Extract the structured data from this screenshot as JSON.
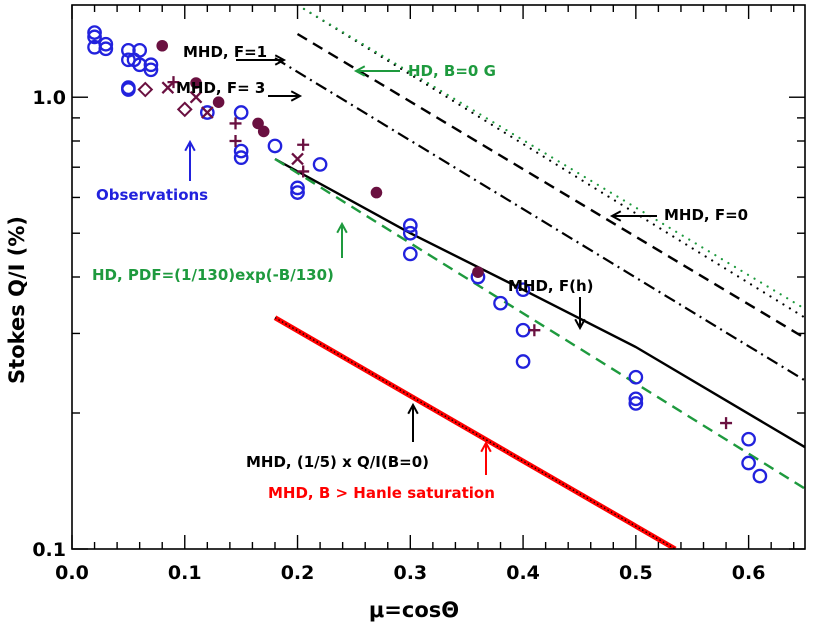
{
  "chart_data": {
    "type": "scatter",
    "xlabel": "μ=cosΘ",
    "ylabel": "Stokes Q/I (%)",
    "xlim": [
      0.0,
      0.65
    ],
    "ylim": [
      0.1,
      1.6
    ],
    "yscale": "log",
    "x_ticks": [
      {
        "value": 0.0,
        "label": "0.0"
      },
      {
        "value": 0.1,
        "label": "0.1"
      },
      {
        "value": 0.2,
        "label": "0.2"
      },
      {
        "value": 0.3,
        "label": "0.3"
      },
      {
        "value": 0.4,
        "label": "0.4"
      },
      {
        "value": 0.5,
        "label": "0.5"
      },
      {
        "value": 0.6,
        "label": "0.6"
      }
    ],
    "y_ticks": [
      {
        "value": 0.1,
        "label": "0.1"
      },
      {
        "value": 1.0,
        "label": "1.0"
      }
    ],
    "colors": {
      "black": "#000000",
      "green": "#1e9a3e",
      "red": "#ff0000",
      "blue": "#2222dd",
      "maroon": "#6a1040"
    },
    "series": [
      {
        "name": "MHD, F=1",
        "style": "dotted",
        "color": "#000000",
        "x": [
          0.2,
          0.65
        ],
        "y": [
          1.6,
          0.325
        ]
      },
      {
        "name": "HD, B=0 G",
        "style": "dotted",
        "color": "#1e9a3e",
        "x": [
          0.2,
          0.65
        ],
        "y": [
          1.6,
          0.34
        ]
      },
      {
        "name": "MHD, F=3",
        "style": "dashed",
        "color": "#000000",
        "x": [
          0.2,
          0.65
        ],
        "y": [
          1.38,
          0.293
        ]
      },
      {
        "name": "MHD, F=0",
        "style": "dashdot",
        "color": "#000000",
        "x": [
          0.18,
          0.65
        ],
        "y": [
          1.22,
          0.236
        ]
      },
      {
        "name": "MHD, F(h)",
        "style": "solid",
        "color": "#000000",
        "x": [
          0.18,
          0.3,
          0.4,
          0.5,
          0.65
        ],
        "y": [
          0.73,
          0.5,
          0.375,
          0.28,
          0.168
        ]
      },
      {
        "name": "HD, PDF=(1/130)exp(-B/130)",
        "style": "dashed",
        "color": "#1e9a3e",
        "x": [
          0.18,
          0.65
        ],
        "y": [
          0.73,
          0.136
        ]
      },
      {
        "name": "MHD, B > Hanle saturation",
        "style": "solid-thick",
        "color": "#ff0000",
        "x": [
          0.18,
          0.535
        ],
        "y": [
          0.325,
          0.1
        ]
      },
      {
        "name": "MHD, (1/5) x Q/I(B=0)",
        "style": "dotted",
        "color": "#000000",
        "x": [
          0.18,
          0.535
        ],
        "y": [
          0.325,
          0.1
        ]
      }
    ],
    "observations": [
      {
        "marker": "open-circle",
        "color": "#2222dd",
        "points": [
          [
            0.02,
            1.39
          ],
          [
            0.02,
            1.36
          ],
          [
            0.02,
            1.29
          ],
          [
            0.03,
            1.31
          ],
          [
            0.03,
            1.28
          ],
          [
            0.05,
            1.27
          ],
          [
            0.05,
            1.21
          ],
          [
            0.05,
            1.05
          ],
          [
            0.05,
            1.04
          ],
          [
            0.055,
            1.21
          ],
          [
            0.06,
            1.27
          ],
          [
            0.06,
            1.18
          ],
          [
            0.07,
            1.18
          ],
          [
            0.07,
            1.15
          ],
          [
            0.12,
            0.925
          ],
          [
            0.15,
            0.925
          ],
          [
            0.15,
            0.76
          ],
          [
            0.15,
            0.735
          ],
          [
            0.18,
            0.78
          ],
          [
            0.2,
            0.63
          ],
          [
            0.2,
            0.615
          ],
          [
            0.22,
            0.71
          ],
          [
            0.3,
            0.52
          ],
          [
            0.3,
            0.5
          ],
          [
            0.3,
            0.45
          ],
          [
            0.36,
            0.4
          ],
          [
            0.38,
            0.35
          ],
          [
            0.4,
            0.375
          ],
          [
            0.4,
            0.305
          ],
          [
            0.4,
            0.26
          ],
          [
            0.5,
            0.24
          ],
          [
            0.5,
            0.215
          ],
          [
            0.5,
            0.21
          ],
          [
            0.6,
            0.175
          ],
          [
            0.6,
            0.155
          ],
          [
            0.61,
            0.145
          ]
        ]
      },
      {
        "marker": "filled-circle",
        "color": "#6a1040",
        "points": [
          [
            0.08,
            1.3
          ],
          [
            0.11,
            1.075
          ],
          [
            0.13,
            0.975
          ],
          [
            0.165,
            0.875
          ],
          [
            0.17,
            0.84
          ],
          [
            0.27,
            0.615
          ],
          [
            0.36,
            0.41
          ]
        ]
      },
      {
        "marker": "plus",
        "color": "#6a1040",
        "points": [
          [
            0.09,
            1.08
          ],
          [
            0.145,
            0.875
          ],
          [
            0.145,
            0.8
          ],
          [
            0.205,
            0.785
          ],
          [
            0.205,
            0.685
          ],
          [
            0.41,
            0.305
          ],
          [
            0.58,
            0.19
          ]
        ]
      },
      {
        "marker": "cross",
        "color": "#6a1040",
        "points": [
          [
            0.085,
            1.05
          ],
          [
            0.11,
            1.0
          ],
          [
            0.12,
            0.925
          ],
          [
            0.2,
            0.73
          ]
        ]
      },
      {
        "marker": "diamond",
        "color": "#6a1040",
        "points": [
          [
            0.065,
            1.04
          ],
          [
            0.1,
            0.94
          ]
        ]
      }
    ],
    "annotations": [
      {
        "id": "ann-mhd-f1",
        "text": "MHD, F=1",
        "color": "#000000"
      },
      {
        "id": "ann-mhd-f3",
        "text": "MHD, F= 3",
        "color": "#000000"
      },
      {
        "id": "ann-hd-b0",
        "text": "HD, B=0 G",
        "color": "#1e9a3e"
      },
      {
        "id": "ann-observations",
        "text": "Observations",
        "color": "#2222dd"
      },
      {
        "id": "ann-mhd-f0",
        "text": "MHD, F=0",
        "color": "#000000"
      },
      {
        "id": "ann-hd-pdf",
        "text": "HD, PDF=(1/130)exp(-B/130)",
        "color": "#1e9a3e"
      },
      {
        "id": "ann-mhd-fh",
        "text": "MHD, F(h)",
        "color": "#000000"
      },
      {
        "id": "ann-mhd-fifth",
        "text": "MHD, (1/5) x Q/I(B=0)",
        "color": "#000000"
      },
      {
        "id": "ann-mhd-hanle",
        "text": "MHD, B > Hanle saturation",
        "color": "#ff0000"
      }
    ]
  }
}
